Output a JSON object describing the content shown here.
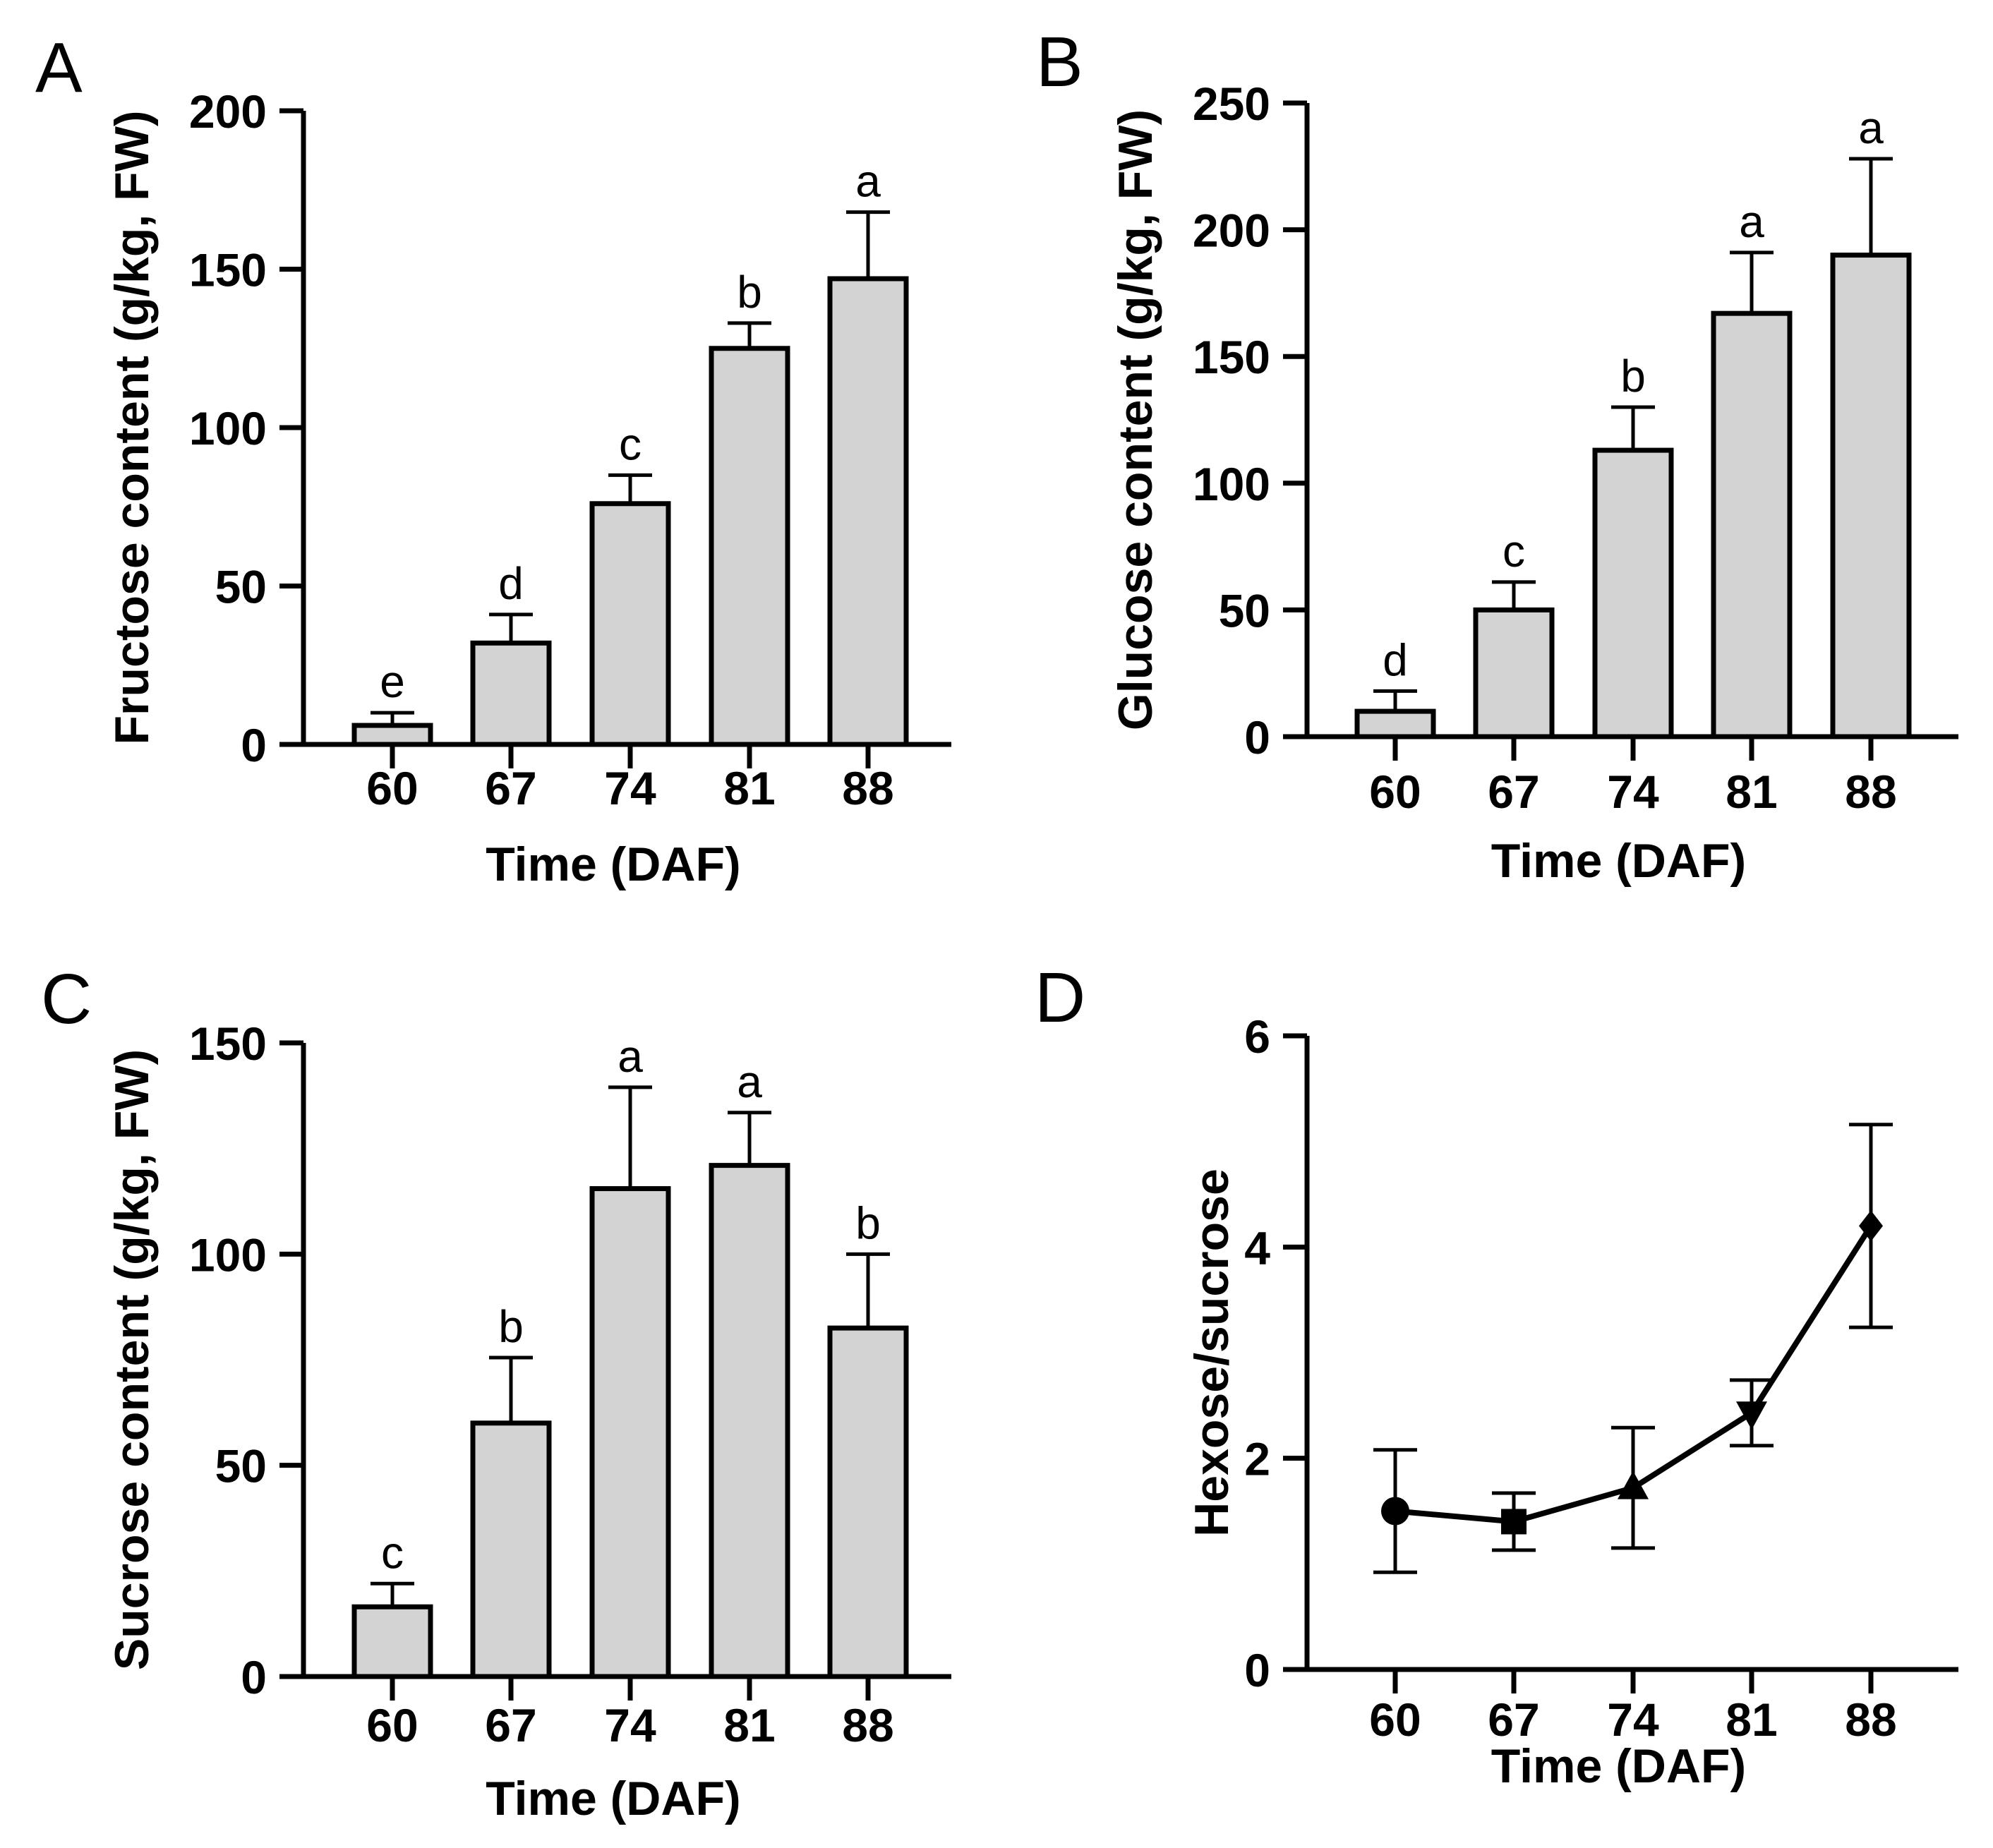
{
  "colors": {
    "bar_fill": "#d3d3d3",
    "stroke": "#000000"
  },
  "chart_data": [
    {
      "type": "bar",
      "panel_label": "A",
      "categories": [
        "60",
        "67",
        "74",
        "81",
        "88"
      ],
      "values": [
        6,
        32,
        76,
        125,
        147
      ],
      "errors": [
        4,
        9,
        9,
        8,
        21
      ],
      "significance": [
        "e",
        "d",
        "c",
        "b",
        "a"
      ],
      "xlabel": "Time (DAF)",
      "ylabel": "Fructose content (g/kg, FW)",
      "ylim": [
        0,
        200
      ],
      "yticks": [
        0,
        50,
        100,
        150,
        200
      ]
    },
    {
      "type": "bar",
      "panel_label": "B",
      "categories": [
        "60",
        "67",
        "74",
        "81",
        "88"
      ],
      "values": [
        10,
        50,
        113,
        167,
        190
      ],
      "errors": [
        8,
        11,
        17,
        24,
        38
      ],
      "significance": [
        "d",
        "c",
        "b",
        "a",
        "a"
      ],
      "xlabel": "Time (DAF)",
      "ylabel": "Glucose content (g/kg, FW)",
      "ylim": [
        0,
        250
      ],
      "yticks": [
        0,
        50,
        100,
        150,
        200,
        250
      ]
    },
    {
      "type": "bar",
      "panel_label": "C",
      "categories": [
        "60",
        "67",
        "74",
        "81",
        "88"
      ],
      "values": [
        16.5,
        60,
        115.5,
        121,
        82.5
      ],
      "errors": [
        5.5,
        15.5,
        24,
        12.5,
        17.5
      ],
      "significance": [
        "c",
        "b",
        "a",
        "a",
        "b"
      ],
      "xlabel": "Time (DAF)",
      "ylabel": "Sucrose content (g/kg, FW)",
      "ylim": [
        0,
        150
      ],
      "yticks": [
        0,
        50,
        100,
        150
      ]
    },
    {
      "type": "line",
      "panel_label": "D",
      "categories": [
        "60",
        "67",
        "74",
        "81",
        "88"
      ],
      "values": [
        1.5,
        1.4,
        1.72,
        2.43,
        4.2
      ],
      "errors": [
        0.58,
        0.27,
        0.57,
        0.31,
        0.96
      ],
      "markers": [
        "circle",
        "square",
        "triangle-up",
        "triangle-down",
        "diamond"
      ],
      "xlabel": "Time (DAF)",
      "ylabel": "Hexose/sucrose",
      "ylim": [
        0,
        6
      ],
      "yticks": [
        0,
        2,
        4,
        6
      ]
    }
  ]
}
